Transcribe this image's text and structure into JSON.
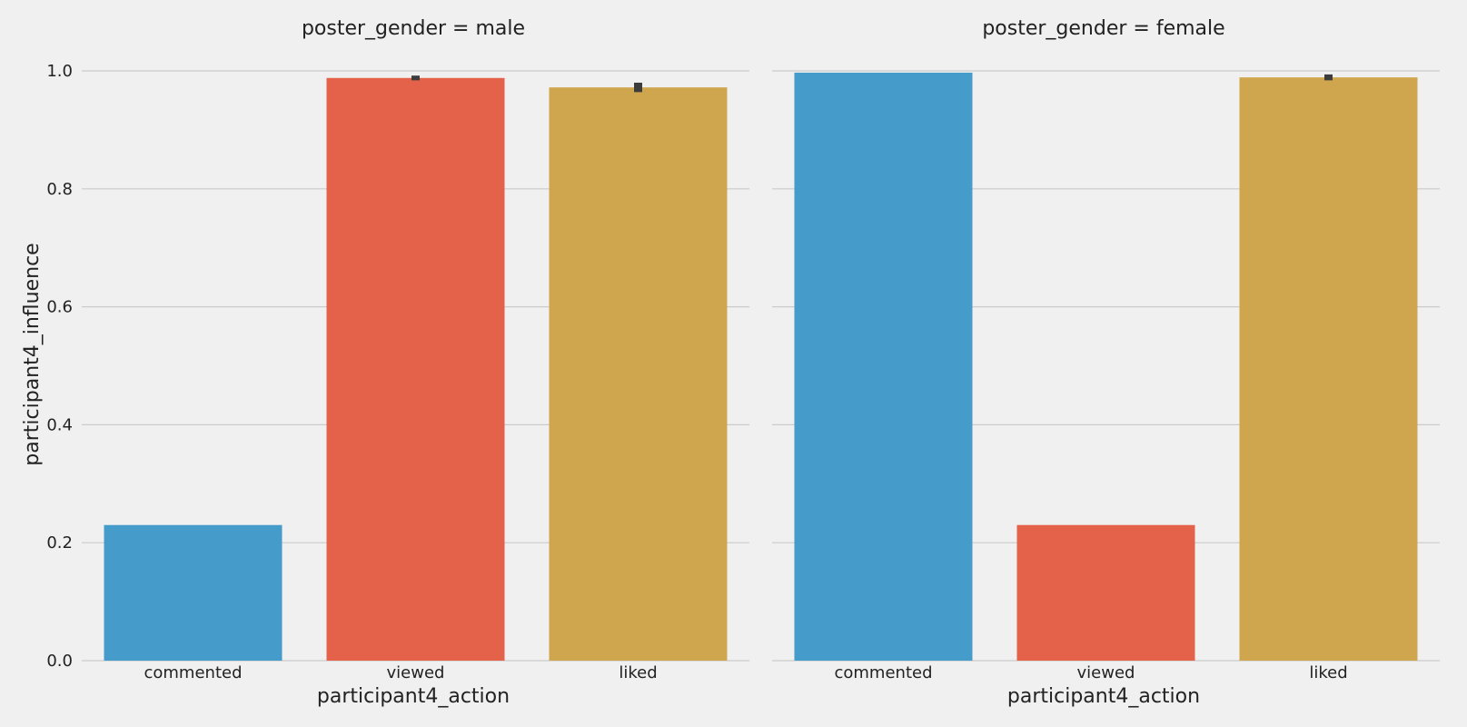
{
  "chart_data": {
    "type": "bar",
    "ylabel": "participant4_influence",
    "ylim": [
      0,
      1.0
    ],
    "yticks": [
      "0.0",
      "0.2",
      "0.4",
      "0.6",
      "0.8",
      "1.0"
    ],
    "grid": true,
    "colors": {
      "background": "#f0f0f0",
      "commented": "#459bc9",
      "viewed": "#e5624a",
      "liked": "#cfa64d",
      "errorbar": "#3c3c3c"
    },
    "panels": [
      {
        "title": "poster_gender = male",
        "xlabel": "participant4_action",
        "categories": [
          "commented",
          "viewed",
          "liked"
        ],
        "values": [
          0.23,
          0.988,
          0.972
        ],
        "error": [
          0.0,
          0.004,
          0.008
        ]
      },
      {
        "title": "poster_gender = female",
        "xlabel": "participant4_action",
        "categories": [
          "commented",
          "viewed",
          "liked"
        ],
        "values": [
          0.997,
          0.23,
          0.989
        ],
        "error": [
          0.0,
          0.0,
          0.005
        ]
      }
    ]
  }
}
